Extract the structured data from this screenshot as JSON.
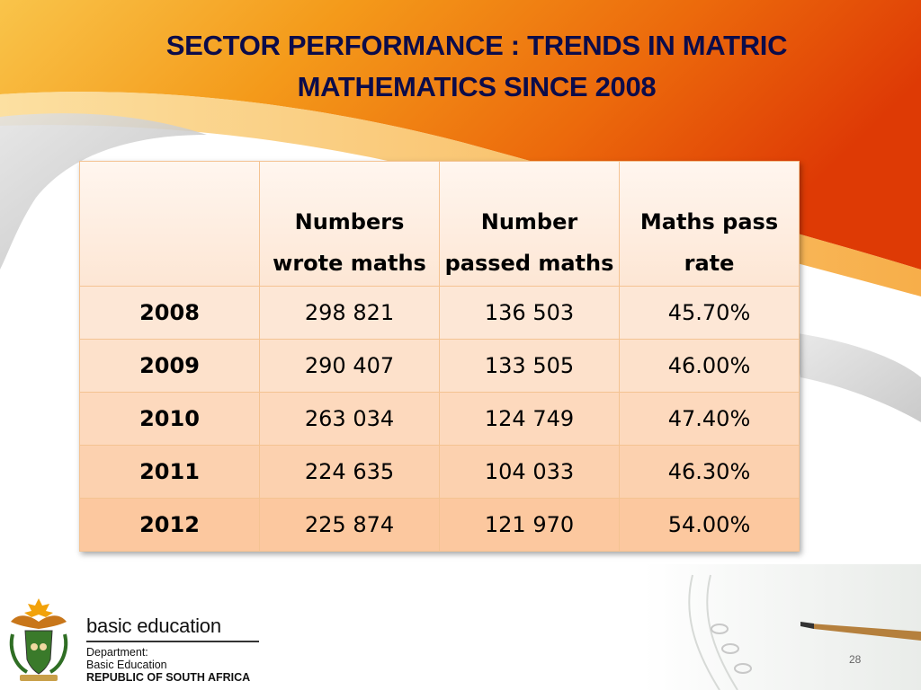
{
  "slide": {
    "title_lines": [
      "SECTOR PERFORMANCE : TRENDS IN MATRIC",
      "MATHEMATICS SINCE 2008"
    ],
    "page_number": "28"
  },
  "table": {
    "headers": [
      "",
      "Numbers wrote maths",
      "Number passed maths",
      "Maths pass rate"
    ],
    "rows": [
      {
        "year": "2008",
        "wrote": "298 821",
        "passed": "136 503",
        "rate": "45.70%"
      },
      {
        "year": "2009",
        "wrote": "290 407",
        "passed": "133 505",
        "rate": "46.00%"
      },
      {
        "year": "2010",
        "wrote": "263 034",
        "passed": "124 749",
        "rate": "47.40%"
      },
      {
        "year": "2011",
        "wrote": "224 635",
        "passed": "104 033",
        "rate": "46.30%"
      },
      {
        "year": "2012",
        "wrote": "225 874",
        "passed": "121 970",
        "rate": "54.00%"
      }
    ]
  },
  "footer": {
    "brand_name": "basic education",
    "dept_lines": [
      "Department:",
      "Basic Education",
      "REPUBLIC OF SOUTH AFRICA"
    ],
    "logo_icon": "coat-of-arms-icon",
    "decor_icon": "pen-notebook-icon"
  },
  "colors": {
    "title": "#0c0c4a",
    "orange_dark": "#e24a06",
    "orange_light": "#f7a21c",
    "cell_border": "#f4c392"
  }
}
